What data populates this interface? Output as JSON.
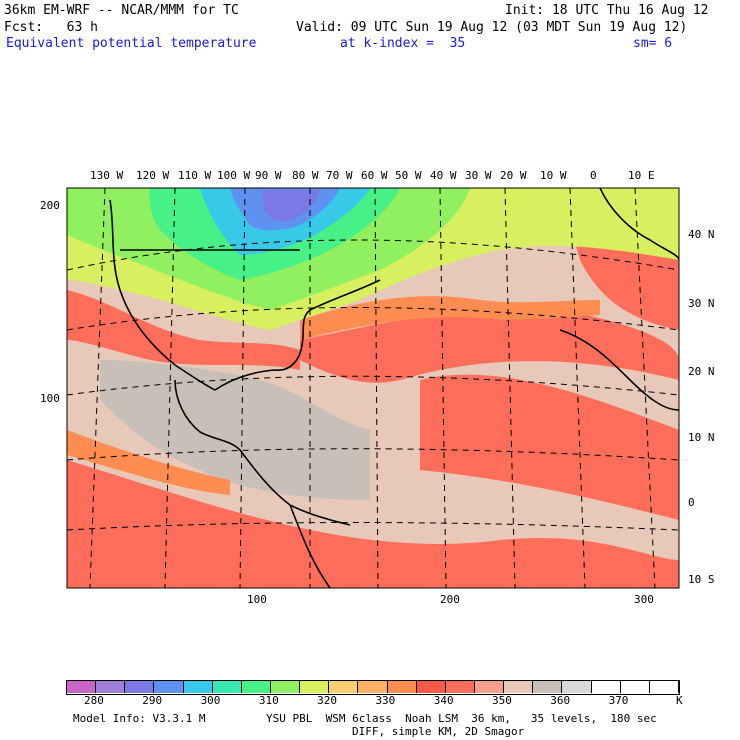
{
  "header": {
    "line1_left": "36km EM-WRF -- NCAR/MMM for TC",
    "line1_right": "Init: 18 UTC Thu 16 Aug 12",
    "line2_left": "Fcst:   63 h",
    "line2_right": "Valid: 09 UTC Sun 19 Aug 12 (03 MDT Sun 19 Aug 12)",
    "line3_field": "Equivalent potential temperature",
    "line3_index": "at k-index =  35",
    "line3_sm": "sm= 6"
  },
  "map": {
    "lon_labels": [
      "130 W",
      "120 W",
      "110 W",
      "100 W",
      "90 W",
      "80 W",
      "70 W",
      "60 W",
      "50 W",
      "40 W",
      "30 W",
      "20 W",
      "10 W",
      "0",
      "10 E"
    ],
    "lat_labels": [
      "40 N",
      "30 N",
      "20 N",
      "10 N",
      "0",
      "10 S"
    ],
    "grid_y_labels": [
      "200",
      "100"
    ],
    "grid_x_labels": [
      "100",
      "200",
      "300"
    ]
  },
  "colorbar": {
    "colors": [
      "#c864c8",
      "#9f7fd8",
      "#7a79e6",
      "#5f92f0",
      "#38c8e8",
      "#38e8b0",
      "#48f088",
      "#90f060",
      "#d8f060",
      "#ffd070",
      "#ffb060",
      "#ff8c50",
      "#ff5a48",
      "#ff6e5a",
      "#f5a08c",
      "#e8c8b8",
      "#c8c0b8",
      "#d8d8d8",
      "#ffffff",
      "#ffffff",
      "#ffffff"
    ],
    "ticks": [
      "280",
      "290",
      "300",
      "310",
      "320",
      "330",
      "340",
      "350",
      "360",
      "370"
    ],
    "unit": "K"
  },
  "footer": {
    "model": "Model Info: V3.3.1 M",
    "physics": "YSU PBL  WSM 6class  Noah LSM  36 km,   35 levels,  180 sec",
    "diff": "DIFF, simple KM, 2D Smagor"
  }
}
